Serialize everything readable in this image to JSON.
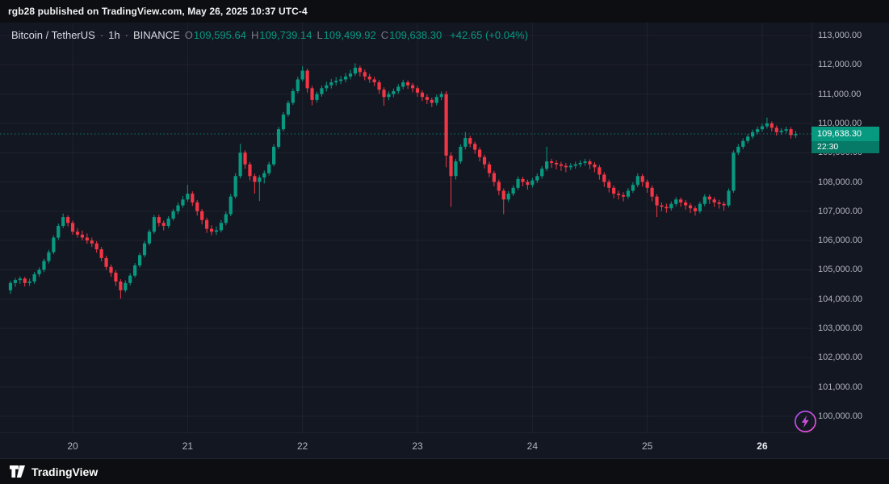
{
  "top_bar": {
    "attribution": "rgb28 published on TradingView.com, May 26, 2025 10:37 UTC-4"
  },
  "legend": {
    "symbol": "Bitcoin / TetherUS",
    "separator": "·",
    "interval": "1h",
    "exchange": "BINANCE",
    "o_label": "O",
    "o_value": "109,595.64",
    "h_label": "H",
    "h_value": "109,739.14",
    "l_label": "L",
    "l_value": "109,499.92",
    "c_label": "C",
    "c_value": "109,638.30",
    "change": "+42.65 (+0.04%)"
  },
  "price_label": {
    "price": "109,638.30",
    "countdown": "22:30",
    "value": 109638.3
  },
  "footer": {
    "brand": "TradingView"
  },
  "boost_button": {
    "icon": "lightning-icon"
  },
  "colors": {
    "up": "#089981",
    "down": "#f23645",
    "background": "#131722",
    "bar_background": "#0d0e11",
    "grid": "rgba(255,255,255,0.05)",
    "axis_text": "#b2b5be",
    "legend_text": "#d6d9e0",
    "legend_label": "#787b86",
    "badge_price_bg": "#089981",
    "badge_countdown_bg": "#067a66",
    "boost": "#d052e3"
  },
  "chart_data": {
    "type": "candlestick",
    "title": "Bitcoin / TetherUS · 1h · BINANCE",
    "ylim": [
      100000,
      113000
    ],
    "y_step": 1000,
    "last_price": 109638.3,
    "y_ticks": [
      {
        "value": 113000,
        "label": "113,000.00"
      },
      {
        "value": 112000,
        "label": "112,000.00"
      },
      {
        "value": 111000,
        "label": "111,000.00"
      },
      {
        "value": 110000,
        "label": "110,000.00"
      },
      {
        "value": 109000,
        "label": "109,000.00"
      },
      {
        "value": 108000,
        "label": "108,000.00"
      },
      {
        "value": 107000,
        "label": "107,000.00"
      },
      {
        "value": 106000,
        "label": "106,000.00"
      },
      {
        "value": 105000,
        "label": "105,000.00"
      },
      {
        "value": 104000,
        "label": "104,000.00"
      },
      {
        "value": 103000,
        "label": "103,000.00"
      },
      {
        "value": 102000,
        "label": "102,000.00"
      },
      {
        "value": 101000,
        "label": "101,000.00"
      },
      {
        "value": 100000,
        "label": "100,000.00"
      }
    ],
    "x_ticks": [
      {
        "index": 13,
        "label": "20",
        "emphasis": false
      },
      {
        "index": 37,
        "label": "21",
        "emphasis": false
      },
      {
        "index": 61,
        "label": "22",
        "emphasis": false
      },
      {
        "index": 85,
        "label": "23",
        "emphasis": false
      },
      {
        "index": 109,
        "label": "24",
        "emphasis": false
      },
      {
        "index": 133,
        "label": "25",
        "emphasis": false
      },
      {
        "index": 157,
        "label": "26",
        "emphasis": true
      }
    ],
    "candles": [
      [
        104300,
        104620,
        104180,
        104550
      ],
      [
        104550,
        104720,
        104420,
        104650
      ],
      [
        104650,
        104780,
        104520,
        104700
      ],
      [
        104700,
        104760,
        104430,
        104550
      ],
      [
        104550,
        104700,
        104450,
        104600
      ],
      [
        104600,
        104930,
        104520,
        104850
      ],
      [
        104850,
        105080,
        104760,
        105000
      ],
      [
        105000,
        105380,
        104920,
        105300
      ],
      [
        105300,
        105680,
        105220,
        105600
      ],
      [
        105600,
        106180,
        105530,
        106100
      ],
      [
        106100,
        106580,
        106020,
        106500
      ],
      [
        106500,
        106920,
        106420,
        106800
      ],
      [
        106800,
        106860,
        106480,
        106600
      ],
      [
        106600,
        106680,
        106200,
        106300
      ],
      [
        106300,
        106420,
        106100,
        106200
      ],
      [
        106200,
        106340,
        106010,
        106100
      ],
      [
        106100,
        106240,
        105890,
        106000
      ],
      [
        106000,
        106100,
        105780,
        105900
      ],
      [
        105900,
        105980,
        105580,
        105700
      ],
      [
        105700,
        105780,
        105290,
        105400
      ],
      [
        105400,
        105480,
        105000,
        105100
      ],
      [
        105100,
        105180,
        104760,
        104900
      ],
      [
        104900,
        104980,
        104450,
        104600
      ],
      [
        104600,
        104680,
        104020,
        104300
      ],
      [
        104300,
        104640,
        104230,
        104550
      ],
      [
        104550,
        104880,
        104470,
        104800
      ],
      [
        104800,
        105230,
        104730,
        105150
      ],
      [
        105150,
        105580,
        105080,
        105500
      ],
      [
        105500,
        105980,
        105430,
        105900
      ],
      [
        105900,
        106380,
        105830,
        106300
      ],
      [
        106300,
        106880,
        106230,
        106800
      ],
      [
        106800,
        106880,
        106480,
        106600
      ],
      [
        106600,
        106680,
        106350,
        106500
      ],
      [
        106500,
        106830,
        106420,
        106750
      ],
      [
        106750,
        107080,
        106680,
        107000
      ],
      [
        107000,
        107300,
        106900,
        107200
      ],
      [
        107200,
        107520,
        107120,
        107400
      ],
      [
        107400,
        107900,
        107320,
        107600
      ],
      [
        107600,
        107680,
        107180,
        107300
      ],
      [
        107300,
        107380,
        106850,
        107000
      ],
      [
        107000,
        107080,
        106550,
        106700
      ],
      [
        106700,
        106780,
        106260,
        106400
      ],
      [
        106400,
        106520,
        106180,
        106300
      ],
      [
        106300,
        106480,
        106190,
        106350
      ],
      [
        106350,
        106700,
        106280,
        106600
      ],
      [
        106600,
        106990,
        106520,
        106900
      ],
      [
        106900,
        107590,
        106830,
        107500
      ],
      [
        107500,
        108300,
        107430,
        108200
      ],
      [
        108200,
        109300,
        108120,
        109000
      ],
      [
        109000,
        109080,
        108450,
        108600
      ],
      [
        108600,
        108680,
        108050,
        108200
      ],
      [
        108200,
        108280,
        107600,
        108000
      ],
      [
        108000,
        108230,
        107350,
        108150
      ],
      [
        108150,
        108390,
        107950,
        108300
      ],
      [
        108300,
        108690,
        108220,
        108600
      ],
      [
        108600,
        109290,
        108530,
        109200
      ],
      [
        109200,
        109880,
        109130,
        109800
      ],
      [
        109800,
        110390,
        109730,
        110300
      ],
      [
        110300,
        110780,
        110230,
        110700
      ],
      [
        110700,
        111190,
        110630,
        111100
      ],
      [
        111100,
        111590,
        111030,
        111500
      ],
      [
        111500,
        111950,
        111430,
        111800
      ],
      [
        111800,
        111870,
        111050,
        111200
      ],
      [
        111200,
        111280,
        110620,
        110800
      ],
      [
        110800,
        111080,
        110710,
        111000
      ],
      [
        111000,
        111290,
        110910,
        111200
      ],
      [
        111200,
        111420,
        111090,
        111300
      ],
      [
        111300,
        111520,
        111190,
        111400
      ],
      [
        111400,
        111580,
        111290,
        111450
      ],
      [
        111450,
        111620,
        111340,
        111500
      ],
      [
        111500,
        111720,
        111400,
        111600
      ],
      [
        111600,
        111830,
        111500,
        111700
      ],
      [
        111700,
        112050,
        111620,
        111900
      ],
      [
        111900,
        111970,
        111600,
        111750
      ],
      [
        111750,
        111840,
        111470,
        111600
      ],
      [
        111600,
        111690,
        111380,
        111500
      ],
      [
        111500,
        111590,
        111270,
        111400
      ],
      [
        111400,
        111480,
        111010,
        111150
      ],
      [
        111150,
        111230,
        110600,
        110900
      ],
      [
        110900,
        111090,
        110790,
        111000
      ],
      [
        111000,
        111190,
        110890,
        111100
      ],
      [
        111100,
        111340,
        111010,
        111250
      ],
      [
        111250,
        111490,
        111160,
        111400
      ],
      [
        111400,
        111470,
        111170,
        111300
      ],
      [
        111300,
        111380,
        111060,
        111200
      ],
      [
        111200,
        111280,
        110910,
        111050
      ],
      [
        111050,
        111130,
        110760,
        110900
      ],
      [
        110900,
        110990,
        110660,
        110800
      ],
      [
        110800,
        110880,
        110560,
        110700
      ],
      [
        110700,
        110980,
        110610,
        110900
      ],
      [
        110900,
        111090,
        110790,
        111000
      ],
      [
        111000,
        111100,
        108500,
        108900
      ],
      [
        108900,
        109010,
        107150,
        108200
      ],
      [
        108200,
        108790,
        108080,
        108700
      ],
      [
        108700,
        109280,
        108620,
        109200
      ],
      [
        109200,
        109700,
        109110,
        109500
      ],
      [
        109500,
        109570,
        109180,
        109300
      ],
      [
        109300,
        109380,
        108960,
        109100
      ],
      [
        109100,
        109180,
        108700,
        108850
      ],
      [
        108850,
        108930,
        108460,
        108600
      ],
      [
        108600,
        108690,
        108160,
        108300
      ],
      [
        108300,
        108380,
        107850,
        108000
      ],
      [
        108000,
        108080,
        107550,
        107700
      ],
      [
        107700,
        107780,
        106900,
        107400
      ],
      [
        107400,
        107690,
        107310,
        107600
      ],
      [
        107600,
        107890,
        107520,
        107800
      ],
      [
        107800,
        108190,
        107720,
        108100
      ],
      [
        108100,
        108170,
        107850,
        108000
      ],
      [
        108000,
        108080,
        107740,
        107900
      ],
      [
        107900,
        108140,
        107810,
        108050
      ],
      [
        108050,
        108290,
        107960,
        108200
      ],
      [
        108200,
        108540,
        108110,
        108450
      ],
      [
        108450,
        109200,
        108370,
        108700
      ],
      [
        108700,
        108790,
        108480,
        108650
      ],
      [
        108650,
        108740,
        108430,
        108600
      ],
      [
        108600,
        108690,
        108380,
        108550
      ],
      [
        108550,
        108650,
        108330,
        108500
      ],
      [
        108500,
        108640,
        108400,
        108550
      ],
      [
        108550,
        108690,
        108450,
        108600
      ],
      [
        108600,
        108740,
        108500,
        108650
      ],
      [
        108650,
        108790,
        108550,
        108700
      ],
      [
        108700,
        108770,
        108440,
        108600
      ],
      [
        108600,
        108680,
        108330,
        108500
      ],
      [
        108500,
        108580,
        108080,
        108250
      ],
      [
        108250,
        108330,
        107830,
        108000
      ],
      [
        108000,
        108080,
        107640,
        107800
      ],
      [
        107800,
        107880,
        107440,
        107600
      ],
      [
        107600,
        107700,
        107400,
        107550
      ],
      [
        107550,
        107650,
        107340,
        107500
      ],
      [
        107500,
        107790,
        107420,
        107700
      ],
      [
        107700,
        107990,
        107620,
        107900
      ],
      [
        107900,
        108290,
        107820,
        108200
      ],
      [
        108200,
        108270,
        107840,
        108000
      ],
      [
        108000,
        108080,
        107630,
        107800
      ],
      [
        107800,
        107880,
        107340,
        107500
      ],
      [
        107500,
        107580,
        106800,
        107200
      ],
      [
        107200,
        107300,
        107000,
        107150
      ],
      [
        107150,
        107260,
        106950,
        107100
      ],
      [
        107100,
        107330,
        107020,
        107250
      ],
      [
        107250,
        107480,
        107170,
        107400
      ],
      [
        107400,
        107470,
        107150,
        107300
      ],
      [
        107300,
        107380,
        107050,
        107200
      ],
      [
        107200,
        107280,
        106940,
        107100
      ],
      [
        107100,
        107180,
        106850,
        107000
      ],
      [
        107000,
        107330,
        106930,
        107250
      ],
      [
        107250,
        107580,
        107170,
        107500
      ],
      [
        107500,
        107570,
        107250,
        107400
      ],
      [
        107400,
        107480,
        107150,
        107300
      ],
      [
        107300,
        107390,
        107090,
        107250
      ],
      [
        107250,
        107330,
        107020,
        107200
      ],
      [
        107200,
        107780,
        107130,
        107700
      ],
      [
        107700,
        109080,
        107630,
        109000
      ],
      [
        109000,
        109290,
        108920,
        109200
      ],
      [
        109200,
        109490,
        109120,
        109400
      ],
      [
        109400,
        109640,
        109320,
        109550
      ],
      [
        109550,
        109790,
        109470,
        109700
      ],
      [
        109700,
        109890,
        109620,
        109800
      ],
      [
        109800,
        109990,
        109720,
        109900
      ],
      [
        109900,
        110200,
        109820,
        110000
      ],
      [
        110000,
        110070,
        109720,
        109850
      ],
      [
        109850,
        109930,
        109580,
        109700
      ],
      [
        109700,
        109840,
        109610,
        109750
      ],
      [
        109750,
        109890,
        109660,
        109800
      ],
      [
        109800,
        109870,
        109480,
        109600
      ],
      [
        109595.64,
        109739.14,
        109499.92,
        109638.3
      ]
    ]
  }
}
